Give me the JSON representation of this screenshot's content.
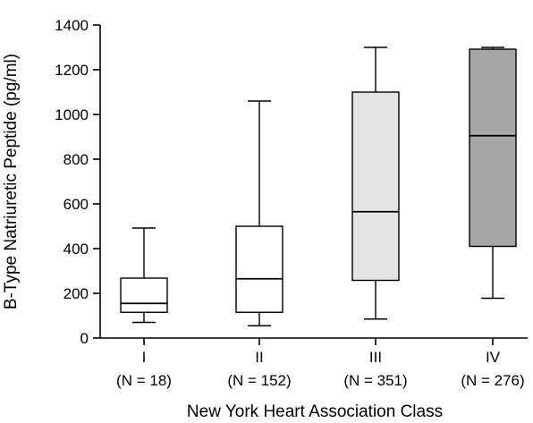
{
  "chart_data": {
    "type": "box",
    "xlabel": "New York Heart Association Class",
    "ylabel": "B-Type Natriuretic Peptide (pg/ml)",
    "ylim": [
      0,
      1400
    ],
    "yticks": [
      0,
      200,
      400,
      600,
      800,
      1000,
      1200,
      1400
    ],
    "grid": false,
    "categories": [
      {
        "label": "I",
        "n_label": "(N = 18)",
        "whisker_low": 70,
        "q1": 115,
        "median": 155,
        "q3": 268,
        "whisker_high": 492,
        "fill": "#ffffff"
      },
      {
        "label": "II",
        "n_label": "(N = 152)",
        "whisker_low": 55,
        "q1": 115,
        "median": 265,
        "q3": 500,
        "whisker_high": 1060,
        "fill": "#ffffff"
      },
      {
        "label": "III",
        "n_label": "(N = 351)",
        "whisker_low": 85,
        "q1": 258,
        "median": 565,
        "q3": 1100,
        "whisker_high": 1300,
        "fill": "#e3e3e3"
      },
      {
        "label": "IV",
        "n_label": "(N = 276)",
        "whisker_low": 178,
        "q1": 410,
        "median": 905,
        "q3": 1292,
        "whisker_high": 1300,
        "fill": "#a6a6a6"
      }
    ]
  }
}
